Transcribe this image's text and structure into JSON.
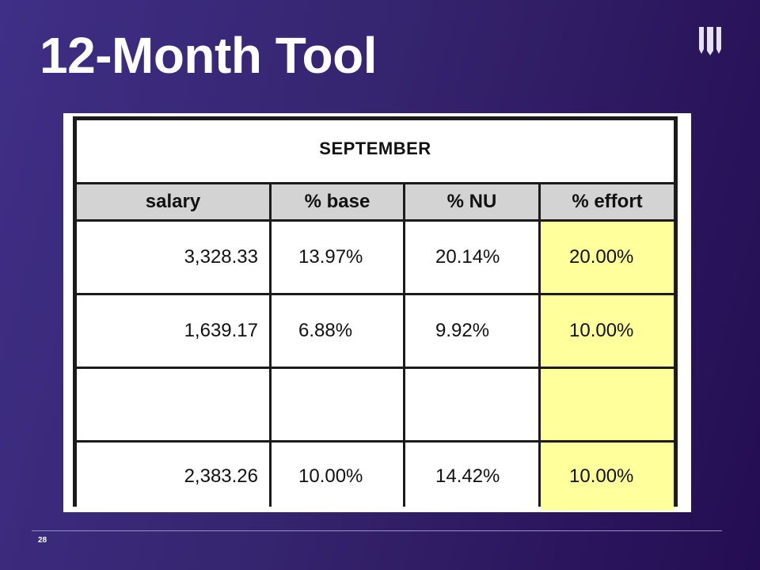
{
  "slide": {
    "title": "12-Month Tool",
    "page_number": "28",
    "logo_icon": "university-w-logo"
  },
  "table": {
    "month": "SEPTEMBER",
    "headers": [
      "salary",
      "% base",
      "% NU",
      "% effort"
    ],
    "rows": [
      [
        "3,328.33",
        "13.97%",
        "20.14%",
        "20.00%"
      ],
      [
        "1,639.17",
        "6.88%",
        "9.92%",
        "10.00%"
      ],
      [
        "",
        "",
        "",
        ""
      ],
      [
        "2,383.26",
        "10.00%",
        "14.42%",
        "10.00%"
      ]
    ],
    "effort_highlight_color": "#ffff9c"
  }
}
